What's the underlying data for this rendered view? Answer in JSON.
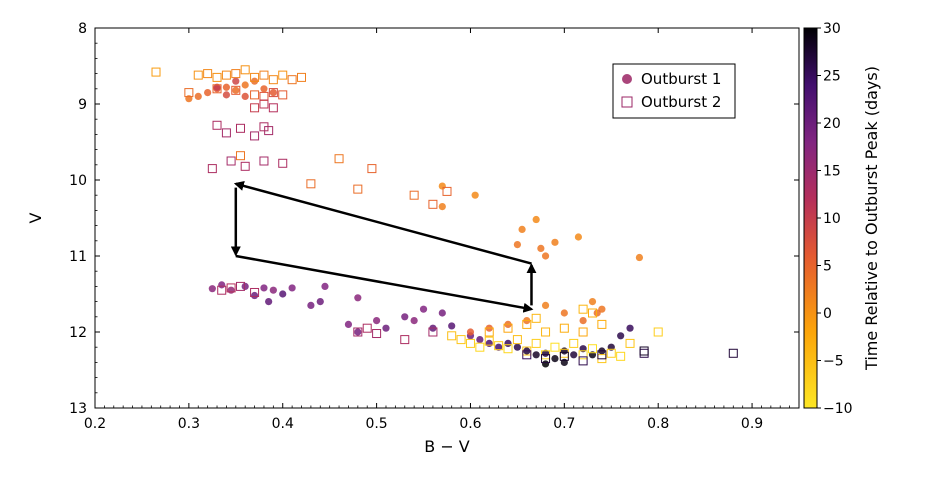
{
  "chart_data": {
    "type": "scatter",
    "xlabel": "B − V",
    "ylabel": "V",
    "xlim": [
      0.2,
      0.95
    ],
    "ylim": [
      13,
      8
    ],
    "y_inverted": true,
    "xticks": [
      "0.2",
      "0.3",
      "0.4",
      "0.5",
      "0.6",
      "0.7",
      "0.8",
      "0.9"
    ],
    "yticks": [
      "8",
      "9",
      "10",
      "11",
      "12",
      "13"
    ],
    "colorbar": {
      "label": "Time Relative to Outburst Peak (days)",
      "range": [
        -10,
        30
      ],
      "ticks": [
        "−10",
        "−5",
        "0",
        "5",
        "10",
        "15",
        "20",
        "25",
        "30"
      ],
      "colormap": "inferno_r"
    },
    "legend": [
      {
        "label": "Outburst 1",
        "marker": "filled circle",
        "color": "#9b2564"
      },
      {
        "label": "Outburst 2",
        "marker": "open square",
        "color": "#9b2564"
      }
    ],
    "arrows": [
      {
        "from": [
          0.665,
          11.1
        ],
        "to": [
          0.35,
          10.05
        ]
      },
      {
        "from": [
          0.35,
          10.1
        ],
        "to": [
          0.35,
          10.98
        ]
      },
      {
        "from": [
          0.35,
          11.0
        ],
        "to": [
          0.665,
          11.7
        ]
      },
      {
        "from": [
          0.665,
          11.65
        ],
        "to": [
          0.665,
          11.12
        ]
      }
    ],
    "series": [
      {
        "name": "Outburst 1",
        "marker": "circle",
        "points": [
          [
            0.3,
            8.93,
            3
          ],
          [
            0.31,
            8.9,
            4
          ],
          [
            0.32,
            8.85,
            5
          ],
          [
            0.33,
            8.8,
            6
          ],
          [
            0.34,
            8.78,
            5
          ],
          [
            0.35,
            8.82,
            4
          ],
          [
            0.36,
            8.75,
            3
          ],
          [
            0.37,
            8.7,
            4
          ],
          [
            0.38,
            8.8,
            5
          ],
          [
            0.39,
            8.85,
            6
          ],
          [
            0.36,
            8.9,
            7
          ],
          [
            0.34,
            8.88,
            8
          ],
          [
            0.33,
            8.78,
            10
          ],
          [
            0.35,
            8.7,
            9
          ],
          [
            0.57,
            10.08,
            1
          ],
          [
            0.605,
            10.2,
            1
          ],
          [
            0.57,
            10.35,
            2
          ],
          [
            0.67,
            10.52,
            1
          ],
          [
            0.655,
            10.65,
            2
          ],
          [
            0.65,
            10.85,
            3
          ],
          [
            0.69,
            10.82,
            2
          ],
          [
            0.715,
            10.75,
            1
          ],
          [
            0.675,
            10.9,
            3
          ],
          [
            0.68,
            11.0,
            3
          ],
          [
            0.78,
            11.02,
            2
          ],
          [
            0.325,
            11.43,
            17
          ],
          [
            0.335,
            11.38,
            18
          ],
          [
            0.345,
            11.45,
            16
          ],
          [
            0.36,
            11.4,
            19
          ],
          [
            0.37,
            11.52,
            20
          ],
          [
            0.38,
            11.42,
            18
          ],
          [
            0.385,
            11.6,
            21
          ],
          [
            0.39,
            11.45,
            17
          ],
          [
            0.4,
            11.5,
            22
          ],
          [
            0.41,
            11.42,
            18
          ],
          [
            0.43,
            11.65,
            19
          ],
          [
            0.44,
            11.6,
            20
          ],
          [
            0.445,
            11.4,
            18
          ],
          [
            0.48,
            11.55,
            17
          ],
          [
            0.47,
            11.9,
            18
          ],
          [
            0.48,
            12.0,
            19
          ],
          [
            0.5,
            11.85,
            17
          ],
          [
            0.51,
            11.95,
            20
          ],
          [
            0.53,
            11.8,
            19
          ],
          [
            0.54,
            11.85,
            17
          ],
          [
            0.55,
            11.7,
            18
          ],
          [
            0.56,
            11.95,
            21
          ],
          [
            0.57,
            11.75,
            19
          ],
          [
            0.58,
            11.92,
            22
          ],
          [
            0.6,
            12.05,
            20
          ],
          [
            0.61,
            12.1,
            21
          ],
          [
            0.62,
            12.15,
            23
          ],
          [
            0.63,
            12.2,
            24
          ],
          [
            0.64,
            12.15,
            25
          ],
          [
            0.65,
            12.2,
            26
          ],
          [
            0.66,
            12.25,
            27
          ],
          [
            0.67,
            12.3,
            28
          ],
          [
            0.68,
            12.28,
            27
          ],
          [
            0.69,
            12.35,
            29
          ],
          [
            0.7,
            12.25,
            28
          ],
          [
            0.71,
            12.3,
            27
          ],
          [
            0.72,
            12.22,
            26
          ],
          [
            0.73,
            12.3,
            29
          ],
          [
            0.74,
            12.25,
            28
          ],
          [
            0.75,
            12.2,
            27
          ],
          [
            0.76,
            12.05,
            26
          ],
          [
            0.77,
            11.95,
            25
          ],
          [
            0.68,
            12.42,
            30
          ],
          [
            0.7,
            12.4,
            29
          ],
          [
            0.6,
            12.0,
            6
          ],
          [
            0.62,
            11.95,
            5
          ],
          [
            0.64,
            11.9,
            4
          ],
          [
            0.66,
            11.85,
            3
          ],
          [
            0.68,
            11.65,
            2
          ],
          [
            0.7,
            11.75,
            3
          ],
          [
            0.72,
            11.85,
            4
          ],
          [
            0.73,
            11.6,
            2
          ],
          [
            0.74,
            11.7,
            3
          ],
          [
            0.735,
            11.75,
            4
          ]
        ]
      },
      {
        "name": "Outburst 2",
        "marker": "square",
        "points": [
          [
            0.265,
            8.58,
            -1
          ],
          [
            0.31,
            8.62,
            0
          ],
          [
            0.32,
            8.6,
            1
          ],
          [
            0.33,
            8.65,
            0
          ],
          [
            0.34,
            8.62,
            1
          ],
          [
            0.35,
            8.6,
            2
          ],
          [
            0.36,
            8.55,
            0
          ],
          [
            0.37,
            8.65,
            1
          ],
          [
            0.38,
            8.62,
            2
          ],
          [
            0.39,
            8.68,
            1
          ],
          [
            0.4,
            8.62,
            0
          ],
          [
            0.41,
            8.68,
            3
          ],
          [
            0.42,
            8.65,
            2
          ],
          [
            0.3,
            8.85,
            4
          ],
          [
            0.33,
            8.8,
            5
          ],
          [
            0.35,
            8.82,
            6
          ],
          [
            0.37,
            8.88,
            5
          ],
          [
            0.38,
            8.9,
            7
          ],
          [
            0.39,
            8.85,
            8
          ],
          [
            0.4,
            8.88,
            6
          ],
          [
            0.33,
            9.28,
            13
          ],
          [
            0.34,
            9.38,
            14
          ],
          [
            0.355,
            9.32,
            13
          ],
          [
            0.37,
            9.42,
            14
          ],
          [
            0.38,
            9.3,
            13
          ],
          [
            0.385,
            9.35,
            14
          ],
          [
            0.39,
            9.05,
            12
          ],
          [
            0.38,
            9.0,
            11
          ],
          [
            0.37,
            9.05,
            10
          ],
          [
            0.325,
            9.85,
            13
          ],
          [
            0.345,
            9.75,
            14
          ],
          [
            0.36,
            9.82,
            13
          ],
          [
            0.38,
            9.75,
            14
          ],
          [
            0.4,
            9.78,
            13
          ],
          [
            0.355,
            9.68,
            3
          ],
          [
            0.43,
            10.05,
            4
          ],
          [
            0.46,
            9.72,
            3
          ],
          [
            0.48,
            10.12,
            4
          ],
          [
            0.495,
            9.85,
            5
          ],
          [
            0.54,
            10.2,
            4
          ],
          [
            0.56,
            10.32,
            5
          ],
          [
            0.575,
            10.15,
            5
          ],
          [
            0.335,
            11.45,
            13
          ],
          [
            0.345,
            11.42,
            12
          ],
          [
            0.355,
            11.4,
            14
          ],
          [
            0.37,
            11.48,
            13
          ],
          [
            0.48,
            12.0,
            14
          ],
          [
            0.49,
            11.95,
            13
          ],
          [
            0.5,
            12.02,
            14
          ],
          [
            0.53,
            12.1,
            13
          ],
          [
            0.56,
            12.0,
            14
          ],
          [
            0.58,
            12.05,
            -5
          ],
          [
            0.59,
            12.1,
            -6
          ],
          [
            0.6,
            12.15,
            -7
          ],
          [
            0.61,
            12.2,
            -8
          ],
          [
            0.62,
            12.12,
            -6
          ],
          [
            0.63,
            12.18,
            -7
          ],
          [
            0.64,
            12.22,
            -8
          ],
          [
            0.65,
            12.1,
            -5
          ],
          [
            0.66,
            12.25,
            -6
          ],
          [
            0.67,
            12.15,
            -7
          ],
          [
            0.68,
            12.3,
            -8
          ],
          [
            0.69,
            12.2,
            -9
          ],
          [
            0.7,
            12.28,
            -6
          ],
          [
            0.71,
            12.15,
            -7
          ],
          [
            0.72,
            12.3,
            -8
          ],
          [
            0.73,
            12.22,
            -9
          ],
          [
            0.74,
            12.35,
            -6
          ],
          [
            0.75,
            12.28,
            -7
          ],
          [
            0.76,
            12.32,
            -8
          ],
          [
            0.8,
            12.0,
            -7
          ],
          [
            0.77,
            12.15,
            -6
          ],
          [
            0.62,
            12.0,
            -3
          ],
          [
            0.64,
            11.95,
            -2
          ],
          [
            0.66,
            11.9,
            -3
          ],
          [
            0.68,
            12.0,
            -4
          ],
          [
            0.7,
            11.95,
            -3
          ],
          [
            0.72,
            12.0,
            -2
          ],
          [
            0.74,
            11.9,
            -3
          ],
          [
            0.72,
            11.7,
            -4
          ],
          [
            0.73,
            11.75,
            -3
          ],
          [
            0.67,
            11.82,
            -4
          ],
          [
            0.66,
            12.3,
            25
          ],
          [
            0.68,
            12.35,
            27
          ],
          [
            0.7,
            12.32,
            28
          ],
          [
            0.72,
            12.38,
            26
          ],
          [
            0.74,
            12.3,
            27
          ],
          [
            0.785,
            12.28,
            26
          ],
          [
            0.88,
            12.28,
            27
          ],
          [
            0.785,
            12.25,
            28
          ]
        ]
      }
    ]
  }
}
